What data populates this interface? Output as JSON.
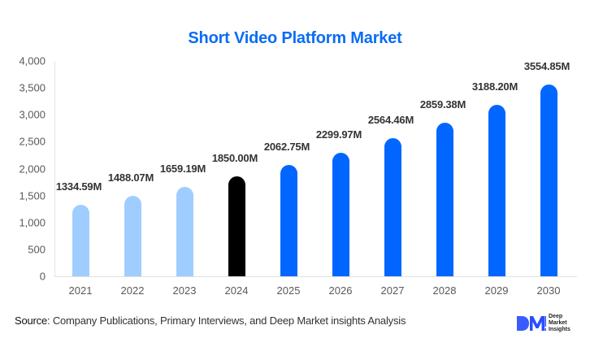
{
  "title": "Short Video Platform Market",
  "colors": {
    "title": "#0a6cf5",
    "historical": "#a0cdff",
    "base_year": "#000000",
    "forecast": "#0066ff",
    "axis_text": "#595959",
    "label_text": "#333333"
  },
  "y_ticks": [
    "4,000",
    "3,500",
    "3,000",
    "2,500",
    "2,000",
    "1,500",
    "1,000",
    "500",
    "0"
  ],
  "chart_data": {
    "type": "bar",
    "title": "Short Video Platform Market",
    "xlabel": "",
    "ylabel": "",
    "ylim": [
      0,
      4000
    ],
    "grid": false,
    "legend": null,
    "categories": [
      "2021",
      "2022",
      "2023",
      "2024",
      "2025",
      "2026",
      "2027",
      "2028",
      "2029",
      "2030"
    ],
    "values": [
      1334.59,
      1488.07,
      1659.19,
      1850.0,
      2062.75,
      2299.97,
      2564.46,
      2859.38,
      3188.2,
      3554.85
    ],
    "labels": [
      "1334.59M",
      "1488.07M",
      "1659.19M",
      "1850.00M",
      "2062.75M",
      "2299.97M",
      "2564.46M",
      "2859.38M",
      "3188.20M",
      "3554.85M"
    ],
    "bar_roles": [
      "historical",
      "historical",
      "historical",
      "base_year",
      "forecast",
      "forecast",
      "forecast",
      "forecast",
      "forecast",
      "forecast"
    ],
    "y_ticks": [
      0,
      500,
      1000,
      1500,
      2000,
      2500,
      3000,
      3500,
      4000
    ]
  },
  "footer": {
    "source_label": "Source",
    "source_text": ": Company Publications, Primary Interviews, and Deep Market insights Analysis",
    "logo": {
      "mark": "DM",
      "line1": "Deep",
      "line2": "Market",
      "line3": "Insights"
    }
  }
}
